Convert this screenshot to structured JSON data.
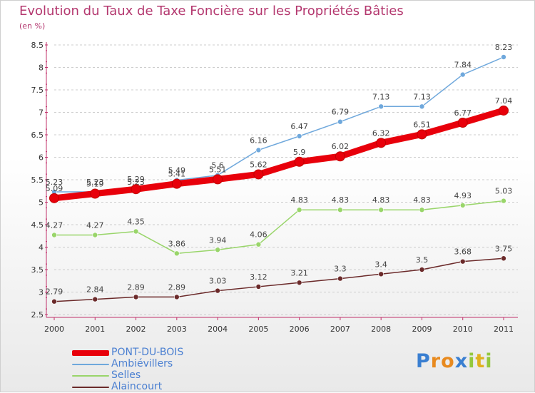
{
  "header": {
    "title": "Evolution du Taux de Taxe Foncière sur les Propriétés Bâties",
    "subtitle": "(en %)"
  },
  "chart_data": {
    "type": "line",
    "categories": [
      "2000",
      "2001",
      "2002",
      "2003",
      "2004",
      "2005",
      "2006",
      "2007",
      "2008",
      "2009",
      "2010",
      "2011"
    ],
    "ylim": [
      2.5,
      8.5
    ],
    "yticks": [
      "2.5",
      "3",
      "3.5",
      "4",
      "4.5",
      "5",
      "5.5",
      "6",
      "6.5",
      "7",
      "7.5",
      "8",
      "8.5"
    ],
    "grid": "horizontal dashed",
    "legend_position": "bottom-left",
    "series": [
      {
        "name": "PONT-DU-BOIS",
        "color": "#e8000b",
        "values": [
          5.09,
          5.19,
          5.29,
          5.41,
          5.51,
          5.62,
          5.9,
          6.02,
          6.32,
          6.51,
          6.77,
          7.04
        ],
        "labels": [
          "5.09",
          "5.19",
          "5.29",
          "5.41",
          "5.51",
          "5.62",
          "5.9",
          "6.02",
          "6.32",
          "6.51",
          "6.77",
          "7.04"
        ]
      },
      {
        "name": "Ambiévillers",
        "color": "#6fa8dc",
        "values": [
          5.23,
          5.23,
          5.23,
          5.49,
          5.6,
          6.16,
          6.47,
          6.79,
          7.13,
          7.13,
          7.84,
          8.23
        ],
        "labels": [
          "5.23",
          "5.23",
          "5.23",
          "5.49",
          "5.6",
          "6.16",
          "6.47",
          "6.79",
          "7.13",
          "7.13",
          "7.84",
          "8.23"
        ]
      },
      {
        "name": "Selles",
        "color": "#99d56a",
        "values": [
          4.27,
          4.27,
          4.35,
          3.86,
          3.94,
          4.06,
          4.83,
          4.83,
          4.83,
          4.83,
          4.93,
          5.03
        ],
        "labels": [
          "4.27",
          "4.27",
          "4.35",
          "3.86",
          "3.94",
          "4.06",
          "4.83",
          "4.83",
          "4.83",
          "4.83",
          "4.93",
          "5.03"
        ]
      },
      {
        "name": "Alaincourt",
        "color": "#6b2a2a",
        "values": [
          2.79,
          2.84,
          2.89,
          2.89,
          3.03,
          3.12,
          3.21,
          3.3,
          3.4,
          3.5,
          3.68,
          3.75
        ],
        "labels": [
          "2.79",
          "2.84",
          "2.89",
          "2.89",
          "3.03",
          "3.12",
          "3.21",
          "3.3",
          "3.4",
          "3.5",
          "3.68",
          "3.75"
        ]
      }
    ]
  },
  "logo": {
    "letters": [
      "P",
      "r",
      "o",
      "x",
      "i",
      "t",
      "i"
    ],
    "colors": [
      "#3a7fd1",
      "#e88a1f",
      "#e88a1f",
      "#3a7fd1",
      "#94c83d",
      "#e0b11f",
      "#94c83d"
    ]
  }
}
